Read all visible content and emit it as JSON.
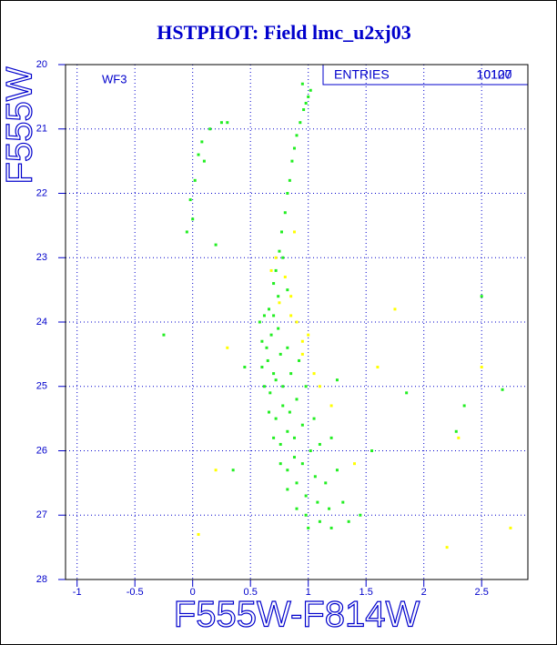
{
  "chart_data": {
    "type": "scatter",
    "title": "HSTPHOT: Field lmc_u2xj03",
    "x_label": "F555W-F814W",
    "y_label": "F555W",
    "annotation": "WF3",
    "stats": {
      "label": "ENTRIES",
      "values": [
        10120,
        10107
      ]
    },
    "xlim": [
      -1.1,
      2.9
    ],
    "ylim": [
      28,
      20
    ],
    "xticks": [
      -1,
      -0.5,
      0,
      0.5,
      1,
      1.5,
      2,
      2.5
    ],
    "yticks": [
      20,
      21,
      22,
      23,
      24,
      25,
      26,
      27,
      28
    ],
    "grid": true,
    "series": [
      {
        "color": "#22ee22",
        "x": [
          0.05,
          0.1,
          0.08,
          0.15,
          0.25,
          0.3,
          0.02,
          -0.02,
          0.0,
          -0.05,
          0.72,
          0.75,
          0.77,
          0.8,
          0.82,
          0.84,
          0.86,
          0.88,
          0.9,
          0.93,
          0.96,
          0.98,
          1.0,
          1.02,
          0.95,
          0.78,
          0.7,
          0.74,
          0.82,
          0.58,
          0.62,
          0.66,
          0.7,
          0.6,
          0.64,
          0.68,
          0.74,
          0.6,
          0.65,
          0.7,
          0.76,
          0.82,
          0.62,
          0.67,
          0.72,
          0.78,
          0.85,
          0.92,
          0.66,
          0.72,
          0.78,
          0.84,
          0.9,
          0.98,
          0.7,
          0.76,
          0.82,
          0.88,
          0.95,
          1.05,
          0.76,
          0.82,
          0.88,
          0.95,
          1.02,
          1.1,
          1.2,
          0.82,
          0.9,
          0.98,
          1.06,
          1.15,
          1.25,
          0.9,
          0.98,
          1.08,
          1.18,
          1.3,
          1.0,
          1.1,
          1.2,
          1.35,
          1.45,
          -0.25,
          0.35,
          1.25,
          2.35,
          2.28,
          2.68,
          2.5,
          1.85,
          0.2,
          1.55,
          0.45
        ],
        "values": [
          21.4,
          21.5,
          21.2,
          21.0,
          20.9,
          20.9,
          21.8,
          22.1,
          22.4,
          22.6,
          23.2,
          22.9,
          22.6,
          22.3,
          22.0,
          21.8,
          21.5,
          21.3,
          21.1,
          20.9,
          20.7,
          20.6,
          20.5,
          20.4,
          20.3,
          23.0,
          23.4,
          23.6,
          23.5,
          24.0,
          23.9,
          23.8,
          23.9,
          24.3,
          24.4,
          24.2,
          24.1,
          24.7,
          24.6,
          24.8,
          24.5,
          24.4,
          25.0,
          25.1,
          24.9,
          25.0,
          24.8,
          24.6,
          25.4,
          25.5,
          25.3,
          25.4,
          25.2,
          25.0,
          25.8,
          25.9,
          25.7,
          25.8,
          25.6,
          25.5,
          26.2,
          26.3,
          26.1,
          26.2,
          26.0,
          25.9,
          25.8,
          26.6,
          26.5,
          26.7,
          26.4,
          26.5,
          26.3,
          26.9,
          27.0,
          26.8,
          26.9,
          26.8,
          27.2,
          27.1,
          27.2,
          27.1,
          27.0,
          24.2,
          26.3,
          24.9,
          25.3,
          25.7,
          25.05,
          23.6,
          25.1,
          22.8,
          26.0,
          24.7
        ]
      },
      {
        "color": "#ffff00",
        "x": [
          0.72,
          0.8,
          0.85,
          0.9,
          0.95,
          0.68,
          0.75,
          0.85,
          0.95,
          1.05,
          1.0,
          1.1,
          0.88,
          1.2,
          1.4,
          1.6,
          2.5,
          2.2,
          1.75,
          0.05,
          0.3,
          0.2,
          2.75,
          2.3
        ],
        "values": [
          23.0,
          23.3,
          23.6,
          24.0,
          24.3,
          23.2,
          23.7,
          23.9,
          24.5,
          24.8,
          24.2,
          25.0,
          22.6,
          25.3,
          26.2,
          24.7,
          24.7,
          27.5,
          23.8,
          27.3,
          24.4,
          26.3,
          27.2,
          25.8
        ]
      }
    ]
  }
}
